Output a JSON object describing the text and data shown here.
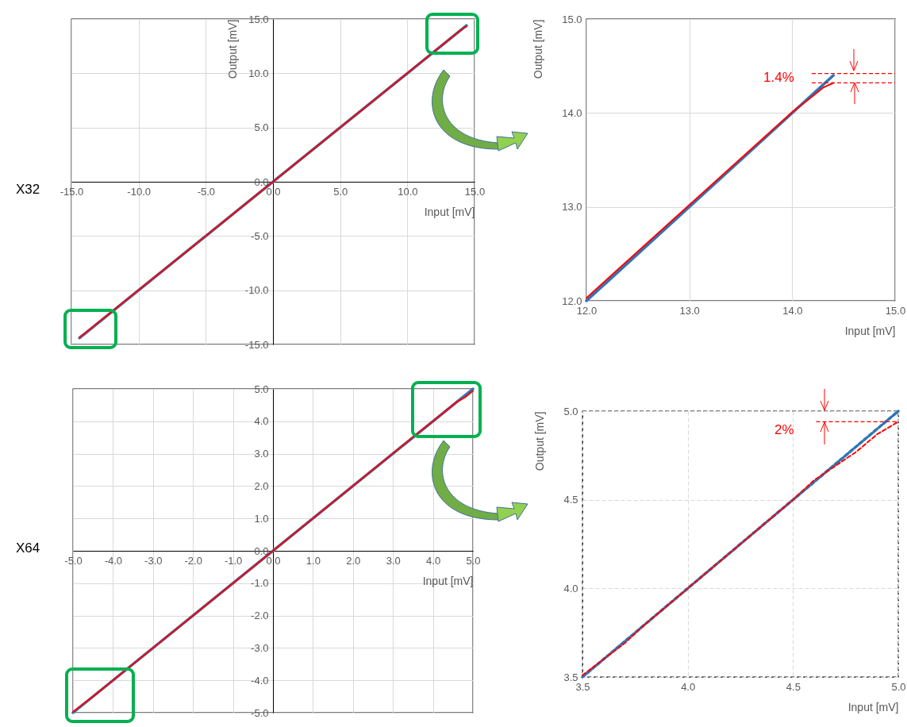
{
  "chart_data": [
    {
      "type": "line",
      "xlabel": "Input [mV]",
      "ylabel": "Output  [mV]",
      "annotations": [
        "X32"
      ],
      "grid": true,
      "line_style": "solid",
      "xlim": [
        -15,
        15
      ],
      "ylim": [
        -15,
        15
      ],
      "xticks": [
        {
          "value": -15,
          "label": "-15.0"
        },
        {
          "value": -10,
          "label": "-10.0"
        },
        {
          "value": -5,
          "label": "-5.0"
        },
        {
          "value": 0,
          "label": "0.0"
        },
        {
          "value": 5,
          "label": "5.0"
        },
        {
          "value": 10,
          "label": "10.0"
        },
        {
          "value": 15,
          "label": "15.0"
        }
      ],
      "yticks": [
        {
          "value": -15,
          "label": "-15.0"
        },
        {
          "value": -10,
          "label": "-10.0"
        },
        {
          "value": -5,
          "label": "-5.0"
        },
        {
          "value": 0,
          "label": "0.0"
        },
        {
          "value": 5,
          "label": "5.0"
        },
        {
          "value": 10,
          "label": "10.0"
        },
        {
          "value": 15,
          "label": "15.0"
        }
      ],
      "series": [
        {
          "color": "#2e75b6",
          "x": [
            -14.4,
            14.4
          ],
          "values": [
            -14.4,
            14.4
          ]
        },
        {
          "color": "#ff0000",
          "x": [
            -14.4,
            -14,
            0,
            14,
            14.2,
            14.4
          ],
          "values": [
            -14.35,
            -13.98,
            0,
            14.01,
            14.18,
            14.32
          ]
        }
      ]
    },
    {
      "type": "line",
      "xlabel": "Input [mV]",
      "ylabel": "Output  [mV]",
      "annotations": [
        "1.4%"
      ],
      "grid": true,
      "line_style": "solid",
      "xlim": [
        12,
        15
      ],
      "ylim": [
        12,
        15
      ],
      "xticks": [
        {
          "value": 12,
          "label": "12.0"
        },
        {
          "value": 13,
          "label": "13.0"
        },
        {
          "value": 14,
          "label": "14.0"
        },
        {
          "value": 15,
          "label": "15.0"
        }
      ],
      "yticks": [
        {
          "value": 12,
          "label": "12.0"
        },
        {
          "value": 13,
          "label": "13.0"
        },
        {
          "value": 14,
          "label": "14.0"
        },
        {
          "value": 15,
          "label": "15.0"
        }
      ],
      "ref_lines": [
        {
          "axis": "y",
          "value": 14.42,
          "color": "#ff0000",
          "line_style": "dashed"
        },
        {
          "axis": "y",
          "value": 14.32,
          "color": "#ff0000",
          "line_style": "dashed"
        }
      ],
      "series": [
        {
          "color": "#2e75b6",
          "x": [
            12,
            14.4
          ],
          "values": [
            12,
            14.4
          ]
        },
        {
          "color": "#ff0000",
          "x": [
            12,
            13,
            14,
            14.2,
            14.3,
            14.4
          ],
          "values": [
            12.03,
            13.02,
            14.01,
            14.18,
            14.27,
            14.32
          ]
        }
      ]
    },
    {
      "type": "line",
      "xlabel": "Input [mV]",
      "annotations": [
        "X64"
      ],
      "grid": true,
      "line_style": "solid",
      "xlim": [
        -5,
        5
      ],
      "ylim": [
        -5,
        5
      ],
      "xticks": [
        {
          "value": -5,
          "label": "-5.0"
        },
        {
          "value": -4,
          "label": "-4.0"
        },
        {
          "value": -3,
          "label": "-3.0"
        },
        {
          "value": -2,
          "label": "-2.0"
        },
        {
          "value": -1,
          "label": "-1.0"
        },
        {
          "value": 0,
          "label": "0.0"
        },
        {
          "value": 1,
          "label": "1.0"
        },
        {
          "value": 2,
          "label": "2.0"
        },
        {
          "value": 3,
          "label": "3.0"
        },
        {
          "value": 4,
          "label": "4.0"
        },
        {
          "value": 5,
          "label": "5.0"
        }
      ],
      "yticks": [
        {
          "value": -5,
          "label": "-5.0"
        },
        {
          "value": -4,
          "label": "-4.0"
        },
        {
          "value": -3,
          "label": "-3.0"
        },
        {
          "value": -2,
          "label": "-2.0"
        },
        {
          "value": -1,
          "label": "-1.0"
        },
        {
          "value": 0,
          "label": "0.0"
        },
        {
          "value": 1,
          "label": "1.0"
        },
        {
          "value": 2,
          "label": "2.0"
        },
        {
          "value": 3,
          "label": "3.0"
        },
        {
          "value": 4,
          "label": "4.0"
        },
        {
          "value": 5,
          "label": "5.0"
        }
      ],
      "series": [
        {
          "color": "#2e75b6",
          "x": [
            -5,
            5
          ],
          "values": [
            -5,
            5
          ]
        },
        {
          "color": "#ff0000",
          "x": [
            -5,
            -4.5,
            -4,
            -3.5,
            0,
            3.5,
            4,
            4.5,
            4.6,
            4.8,
            5
          ],
          "values": [
            -4.97,
            -4.5,
            -4,
            -3.5,
            0,
            3.51,
            4,
            4.5,
            4.6,
            4.74,
            4.94
          ]
        }
      ]
    },
    {
      "type": "line",
      "xlabel": "Input [mV]",
      "ylabel": "Output [mV]",
      "annotations": [
        "2%"
      ],
      "grid": true,
      "line_style": "dashed",
      "xlim": [
        3.5,
        5
      ],
      "ylim": [
        3.5,
        5
      ],
      "xticks": [
        {
          "value": 3.5,
          "label": "3.5"
        },
        {
          "value": 4,
          "label": "4.0"
        },
        {
          "value": 4.5,
          "label": "4.5"
        },
        {
          "value": 5,
          "label": "5.0"
        }
      ],
      "yticks": [
        {
          "value": 3.5,
          "label": "3.5"
        },
        {
          "value": 4,
          "label": "4.0"
        },
        {
          "value": 4.5,
          "label": "4.5"
        },
        {
          "value": 5,
          "label": "5.0"
        }
      ],
      "ref_lines": [
        {
          "axis": "y",
          "value": 4.94,
          "color": "#ff0000",
          "line_style": "dashed"
        }
      ],
      "series": [
        {
          "color": "#2e75b6",
          "x": [
            3.5,
            5
          ],
          "values": [
            3.5,
            5
          ]
        },
        {
          "color": "#ff0000",
          "x": [
            3.5,
            3.6,
            3.7,
            3.8,
            3.9,
            4.0,
            4.2,
            4.4,
            4.5,
            4.6,
            4.7,
            4.8,
            4.9,
            5.0
          ],
          "values": [
            3.51,
            3.6,
            3.69,
            3.8,
            3.9,
            4.0,
            4.2,
            4.4,
            4.5,
            4.61,
            4.69,
            4.77,
            4.87,
            4.94
          ]
        }
      ]
    }
  ]
}
